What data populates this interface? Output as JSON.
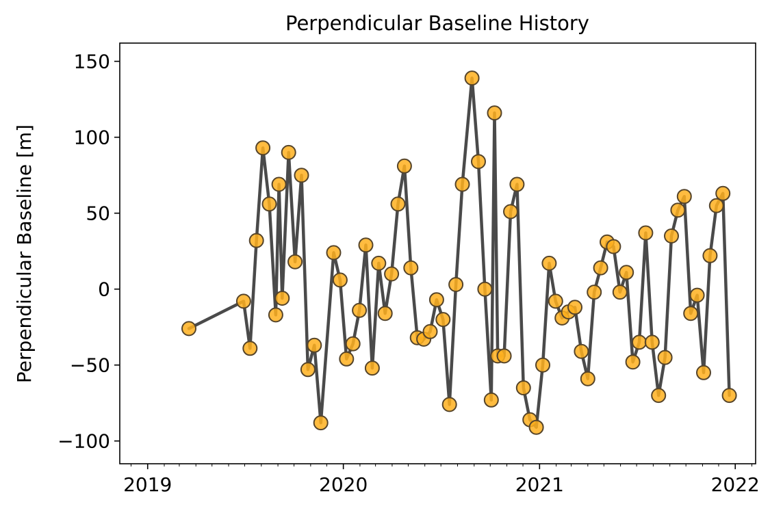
{
  "chart_data": {
    "type": "line",
    "title": "Perpendicular Baseline History",
    "xlabel": "",
    "ylabel": "Perpendicular Baseline [m]",
    "xlim": [
      "2018-11-10",
      "2022-02-08"
    ],
    "ylim": [
      -115,
      162
    ],
    "xticks": [
      {
        "value": "2019-01-01",
        "label": "2019"
      },
      {
        "value": "2020-01-01",
        "label": "2020"
      },
      {
        "value": "2021-01-01",
        "label": "2021"
      },
      {
        "value": "2022-01-01",
        "label": "2022"
      }
    ],
    "yticks": [
      {
        "value": -100,
        "label": "−100"
      },
      {
        "value": -50,
        "label": "−50"
      },
      {
        "value": 0,
        "label": "0"
      },
      {
        "value": 50,
        "label": "50"
      },
      {
        "value": 100,
        "label": "100"
      },
      {
        "value": 150,
        "label": "150"
      }
    ],
    "grid": false,
    "line_color": "#4a4a4a",
    "marker_color": "#ffb01f",
    "marker_edge_color": "#55442a",
    "points": [
      {
        "x": "2019-03-19",
        "y": -26
      },
      {
        "x": "2019-06-29",
        "y": -8
      },
      {
        "x": "2019-07-11",
        "y": -39
      },
      {
        "x": "2019-07-23",
        "y": 32
      },
      {
        "x": "2019-08-04",
        "y": 93
      },
      {
        "x": "2019-08-16",
        "y": 56
      },
      {
        "x": "2019-08-28",
        "y": -17
      },
      {
        "x": "2019-09-03",
        "y": 69
      },
      {
        "x": "2019-09-09",
        "y": -6
      },
      {
        "x": "2019-09-21",
        "y": 90
      },
      {
        "x": "2019-10-03",
        "y": 18
      },
      {
        "x": "2019-10-15",
        "y": 75
      },
      {
        "x": "2019-10-27",
        "y": -53
      },
      {
        "x": "2019-11-08",
        "y": -37
      },
      {
        "x": "2019-11-20",
        "y": -88
      },
      {
        "x": "2019-12-14",
        "y": 24
      },
      {
        "x": "2019-12-26",
        "y": 6
      },
      {
        "x": "2020-01-07",
        "y": -46
      },
      {
        "x": "2020-01-19",
        "y": -36
      },
      {
        "x": "2020-01-31",
        "y": -14
      },
      {
        "x": "2020-02-12",
        "y": 29
      },
      {
        "x": "2020-02-24",
        "y": -52
      },
      {
        "x": "2020-03-07",
        "y": 17
      },
      {
        "x": "2020-03-19",
        "y": -16
      },
      {
        "x": "2020-03-31",
        "y": 10
      },
      {
        "x": "2020-04-12",
        "y": 56
      },
      {
        "x": "2020-04-24",
        "y": 81
      },
      {
        "x": "2020-05-06",
        "y": 14
      },
      {
        "x": "2020-05-18",
        "y": -32
      },
      {
        "x": "2020-05-30",
        "y": -33
      },
      {
        "x": "2020-06-11",
        "y": -28
      },
      {
        "x": "2020-06-23",
        "y": -7
      },
      {
        "x": "2020-07-05",
        "y": -20
      },
      {
        "x": "2020-07-17",
        "y": -76
      },
      {
        "x": "2020-07-29",
        "y": 3
      },
      {
        "x": "2020-08-10",
        "y": 69
      },
      {
        "x": "2020-08-28",
        "y": 139
      },
      {
        "x": "2020-09-09",
        "y": 84
      },
      {
        "x": "2020-09-21",
        "y": 0
      },
      {
        "x": "2020-10-03",
        "y": -73
      },
      {
        "x": "2020-10-09",
        "y": 116
      },
      {
        "x": "2020-10-15",
        "y": -44
      },
      {
        "x": "2020-10-27",
        "y": -44
      },
      {
        "x": "2020-11-08",
        "y": 51
      },
      {
        "x": "2020-11-20",
        "y": 69
      },
      {
        "x": "2020-12-02",
        "y": -65
      },
      {
        "x": "2020-12-14",
        "y": -86
      },
      {
        "x": "2020-12-26",
        "y": -91
      },
      {
        "x": "2021-01-07",
        "y": -50
      },
      {
        "x": "2021-01-19",
        "y": 17
      },
      {
        "x": "2021-01-31",
        "y": -8
      },
      {
        "x": "2021-02-12",
        "y": -19
      },
      {
        "x": "2021-02-24",
        "y": -15
      },
      {
        "x": "2021-03-08",
        "y": -12
      },
      {
        "x": "2021-03-20",
        "y": -41
      },
      {
        "x": "2021-04-01",
        "y": -59
      },
      {
        "x": "2021-04-13",
        "y": -2
      },
      {
        "x": "2021-04-25",
        "y": 14
      },
      {
        "x": "2021-05-07",
        "y": 31
      },
      {
        "x": "2021-05-19",
        "y": 28
      },
      {
        "x": "2021-05-31",
        "y": -2
      },
      {
        "x": "2021-06-12",
        "y": 11
      },
      {
        "x": "2021-06-24",
        "y": -48
      },
      {
        "x": "2021-07-06",
        "y": -35
      },
      {
        "x": "2021-07-18",
        "y": 37
      },
      {
        "x": "2021-07-30",
        "y": -35
      },
      {
        "x": "2021-08-11",
        "y": -70
      },
      {
        "x": "2021-08-23",
        "y": -45
      },
      {
        "x": "2021-09-04",
        "y": 35
      },
      {
        "x": "2021-09-16",
        "y": 52
      },
      {
        "x": "2021-09-28",
        "y": 61
      },
      {
        "x": "2021-10-10",
        "y": -16
      },
      {
        "x": "2021-10-22",
        "y": -4
      },
      {
        "x": "2021-11-03",
        "y": -55
      },
      {
        "x": "2021-11-15",
        "y": 22
      },
      {
        "x": "2021-11-27",
        "y": 55
      },
      {
        "x": "2021-12-09",
        "y": 63
      },
      {
        "x": "2021-12-21",
        "y": -70
      }
    ]
  }
}
